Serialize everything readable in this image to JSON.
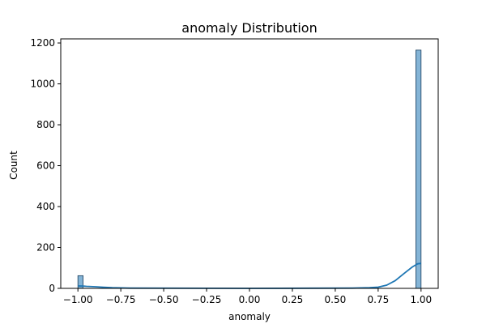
{
  "chart_data": {
    "type": "bar",
    "title": "anomaly Distribution",
    "xlabel": "anomaly",
    "ylabel": "Count",
    "xlim": [
      -1.1,
      1.1
    ],
    "ylim": [
      0,
      1220
    ],
    "x_ticks": [
      -1.0,
      -0.75,
      -0.5,
      -0.25,
      0.0,
      0.25,
      0.5,
      0.75,
      1.0
    ],
    "x_tick_labels": [
      "−1.00",
      "−0.75",
      "−0.50",
      "−0.25",
      "0.00",
      "0.25",
      "0.50",
      "0.75",
      "1.00"
    ],
    "y_ticks": [
      0,
      200,
      400,
      600,
      800,
      1000,
      1200
    ],
    "y_tick_labels": [
      "0",
      "200",
      "400",
      "600",
      "800",
      "1000",
      "1200"
    ],
    "grid": false,
    "series": [
      {
        "kind": "histogram",
        "bars": [
          {
            "x0": -1.0,
            "x1": -0.9697,
            "count": 62
          },
          {
            "x0": 0.9697,
            "x1": 1.0,
            "count": 1165
          }
        ],
        "color": "#1f77b4"
      },
      {
        "kind": "kde",
        "x": [
          -1.0,
          -0.97,
          -0.95,
          -0.9,
          -0.85,
          -0.8,
          -0.7,
          0.0,
          0.6,
          0.7,
          0.75,
          0.8,
          0.85,
          0.9,
          0.95,
          0.98,
          1.0
        ],
        "y": [
          12,
          11,
          10,
          8,
          5,
          3,
          1,
          0,
          1,
          3,
          6,
          16,
          38,
          72,
          105,
          120,
          122
        ],
        "color": "#1f77b4"
      }
    ]
  }
}
